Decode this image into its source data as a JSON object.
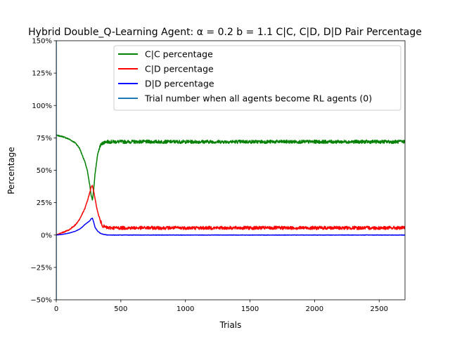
{
  "chart_data": {
    "type": "line",
    "title": "Hybrid Double_Q-Learning Agent: α = 0.2 b = 1.1  C|C, C|D, D|D Pair Percentage",
    "xlabel": "Trials",
    "ylabel": "Percentage",
    "xlim": [
      0,
      2700
    ],
    "ylim": [
      -50,
      150
    ],
    "xticks": [
      0,
      500,
      1000,
      1500,
      2000,
      2500
    ],
    "yticks": [
      -50,
      -25,
      0,
      25,
      50,
      75,
      100,
      125,
      150
    ],
    "ytick_labels": [
      "−50%",
      "−25%",
      "0%",
      "25%",
      "50%",
      "75%",
      "100%",
      "125%",
      "150%"
    ],
    "legend_position": "top-center",
    "grid": false,
    "series": [
      {
        "name": "C|C percentage",
        "color": "#008000",
        "x": [
          0,
          50,
          100,
          150,
          180,
          200,
          220,
          240,
          260,
          270,
          280,
          290,
          300,
          320,
          340,
          360,
          380,
          400,
          500,
          700,
          1000,
          1500,
          2000,
          2500,
          2700
        ],
        "y": [
          77,
          76,
          74,
          71,
          67,
          62,
          57,
          50,
          38,
          31,
          27,
          35,
          47,
          62,
          69,
          71,
          72,
          72,
          72,
          72,
          72,
          72,
          72,
          72,
          72
        ],
        "noise": 1.3
      },
      {
        "name": "C|D percentage",
        "color": "#ff0000",
        "x": [
          0,
          50,
          100,
          150,
          180,
          200,
          220,
          240,
          260,
          270,
          280,
          290,
          300,
          320,
          340,
          360,
          380,
          400,
          500,
          700,
          1000,
          1500,
          2000,
          2500,
          2700
        ],
        "y": [
          0,
          2,
          4,
          8,
          12,
          16,
          20,
          26,
          33,
          37,
          38,
          34,
          28,
          18,
          11,
          7,
          6,
          5.5,
          5.5,
          5.5,
          5.5,
          5.5,
          5.5,
          5.5,
          5.5
        ],
        "noise": 1.3
      },
      {
        "name": "D|D percentage",
        "color": "#0000ff",
        "x": [
          0,
          50,
          100,
          150,
          180,
          200,
          220,
          240,
          260,
          270,
          280,
          290,
          300,
          320,
          340,
          360,
          380,
          400,
          500,
          700,
          1000,
          1500,
          2000,
          2500,
          2700
        ],
        "y": [
          0,
          0.5,
          1.5,
          3,
          4.5,
          6,
          8,
          9.5,
          11,
          12.5,
          13,
          10,
          6,
          3,
          1.5,
          0.7,
          0.3,
          0,
          0,
          0,
          0,
          0,
          0,
          0,
          0
        ],
        "noise": 0.15
      },
      {
        "name": "Trial number when all agents become RL agents (0)",
        "color": "#1f77b4",
        "type": "vline",
        "x": [
          0
        ]
      }
    ]
  }
}
